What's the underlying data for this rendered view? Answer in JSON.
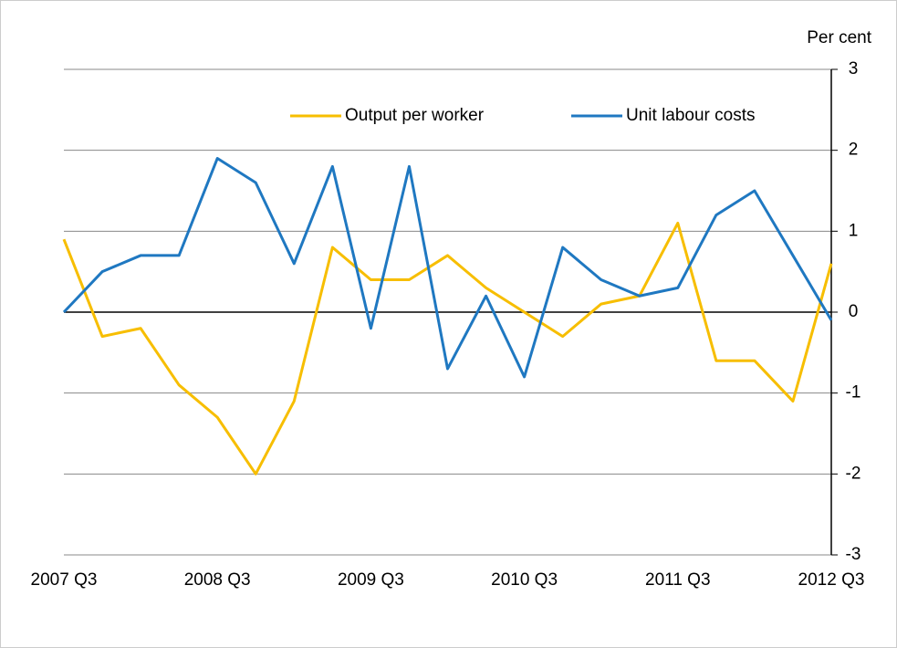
{
  "chart_data": {
    "type": "line",
    "y_label": "Per cent",
    "categories": [
      "2007 Q3",
      null,
      null,
      null,
      "2008 Q3",
      null,
      null,
      null,
      "2009 Q3",
      null,
      null,
      null,
      "2010 Q3",
      null,
      null,
      null,
      "2011 Q3",
      null,
      null,
      null,
      "2012 Q3"
    ],
    "series": [
      {
        "name": "Output per worker",
        "color": "#f7be00",
        "values": [
          0.9,
          -0.3,
          -0.2,
          -0.9,
          -1.3,
          -2.0,
          -1.1,
          0.8,
          0.4,
          0.4,
          0.7,
          0.3,
          0.0,
          -0.3,
          0.1,
          0.2,
          1.1,
          -0.6,
          -0.6,
          -1.1,
          0.6
        ]
      },
      {
        "name": "Unit labour costs",
        "color": "#1f78c1",
        "values": [
          0,
          0.5,
          0.7,
          0.7,
          1.9,
          1.6,
          0.6,
          1.8,
          -0.2,
          1.8,
          -0.7,
          0.2,
          -0.8,
          0.8,
          0.4,
          0.2,
          0.3,
          1.2,
          1.5,
          0.7,
          -0.1
        ]
      }
    ],
    "ylim": [
      -3,
      3
    ],
    "yticks": [
      -3,
      -2,
      -1,
      0,
      1,
      2,
      3
    ],
    "grid": true,
    "legend": "top"
  }
}
